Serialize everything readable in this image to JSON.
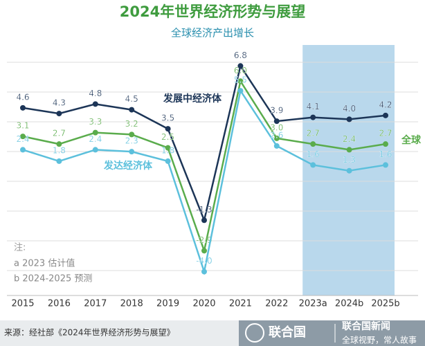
{
  "chart_data": {
    "type": "line",
    "title": "2024年世界经济形势与展望",
    "subtitle": "全球经济产出增长",
    "categories": [
      "2015",
      "2016",
      "2017",
      "2018",
      "2019",
      "2020",
      "2021",
      "2022",
      "2023a",
      "2024b",
      "2025b"
    ],
    "series": [
      {
        "name": "发展中经济体",
        "color": "#1c3557",
        "values": [
          4.6,
          4.3,
          4.8,
          4.5,
          3.5,
          -1.3,
          6.8,
          3.9,
          4.1,
          4.0,
          4.2
        ],
        "value_labels": [
          "4.6",
          "4.3",
          "4.8",
          "4.5",
          "3.5",
          "-1.3",
          "6.8",
          "3.9",
          "4.1",
          "4.0",
          "4.2"
        ]
      },
      {
        "name": "全球",
        "color": "#5aac4c",
        "values": [
          3.1,
          2.7,
          3.3,
          3.2,
          2.5,
          -2.9,
          6.0,
          3.0,
          2.7,
          2.4,
          2.7
        ],
        "value_labels": [
          "3.1",
          "2.7",
          "3.3",
          "3.2",
          "2.5",
          "-2.9",
          "6.0",
          "3.0",
          "2.7",
          "2.4",
          "2.7"
        ]
      },
      {
        "name": "发达经济体",
        "color": "#5cc0dc",
        "values": [
          2.4,
          1.8,
          2.4,
          2.3,
          1.8,
          -4.0,
          5.5,
          2.6,
          1.6,
          1.3,
          1.6
        ],
        "value_labels": [
          "2.4",
          "1.8",
          "2.4",
          "2.3",
          "1.8",
          "-4.0",
          "5.5",
          "2.6",
          "1.6",
          "1.3",
          "1.6"
        ]
      }
    ],
    "ylim": [
      -5.25,
      7.9
    ],
    "notes": [
      "注:",
      "a 2023 估计值",
      "b 2024-2025 预测"
    ]
  },
  "footer": {
    "source": "来源：经社部《2024年世界经济形势与展望》",
    "brand": "联合国",
    "news": "联合国新闻",
    "slogan": "全球视野，常人故事"
  }
}
